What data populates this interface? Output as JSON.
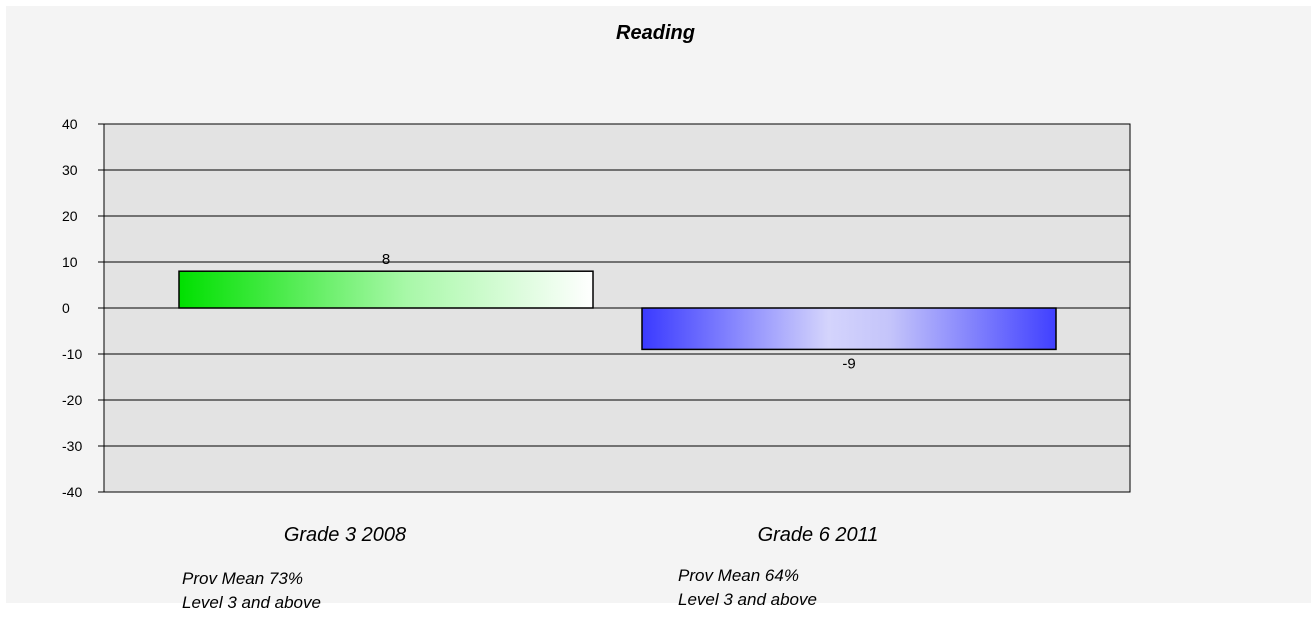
{
  "chart_data": {
    "type": "bar",
    "title": "Reading",
    "categories": [
      "Grade 3 2008",
      "Grade 6 2011"
    ],
    "values": [
      8,
      -9
    ],
    "data_labels": [
      "8",
      "-9"
    ],
    "ylim": [
      -40,
      40
    ],
    "yticks": [
      40,
      30,
      20,
      10,
      0,
      -10,
      -20,
      -30,
      -40
    ],
    "ytick_labels": [
      "40",
      "30",
      "20",
      "10",
      "0",
      "-10",
      "-20",
      "-30",
      "-40"
    ],
    "grid": true,
    "bar_colors": [
      "#00e000",
      "#4040ff"
    ],
    "notes": [
      {
        "line1": "Prov Mean 73%",
        "line2": "Level 3 and above"
      },
      {
        "line1": "Prov Mean  64%",
        "line2": "Level 3 and above"
      }
    ]
  }
}
